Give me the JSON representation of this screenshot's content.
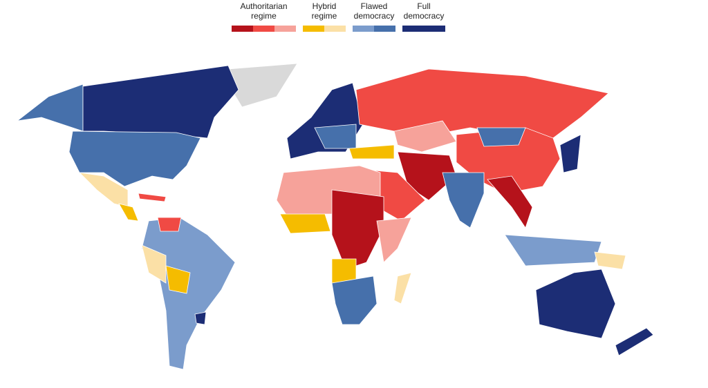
{
  "legend": [
    {
      "label": [
        "Authoritarian",
        "regime"
      ],
      "colors": [
        "#b5121b",
        "#f04a44",
        "#f6a29a"
      ]
    },
    {
      "label": [
        "Hybrid",
        "regime"
      ],
      "colors": [
        "#f5bc00",
        "#fbe0a6"
      ]
    },
    {
      "label": [
        "Flawed",
        "democracy"
      ],
      "colors": [
        "#7b9ccc",
        "#4670ab"
      ]
    },
    {
      "label": [
        "Full",
        "democracy"
      ],
      "colors": [
        "#1c2d75"
      ]
    }
  ]
}
